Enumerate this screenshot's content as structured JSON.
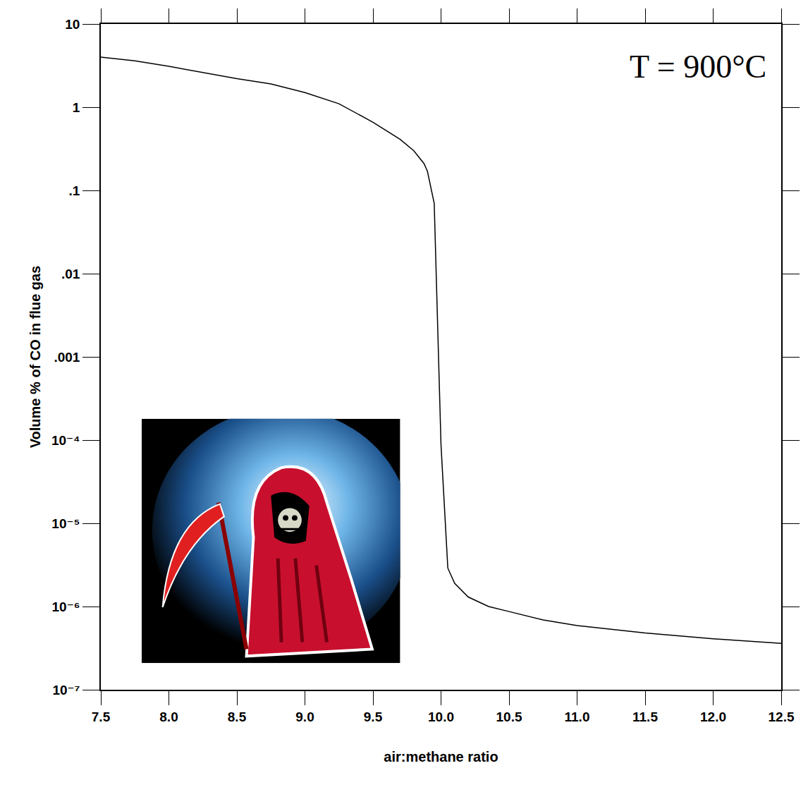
{
  "chart_data": {
    "type": "line",
    "x_label": "air:methane ratio",
    "y_label": "Volume % of CO in flue gas",
    "annotations": [
      "T = 900°C"
    ],
    "x": [
      7.5,
      7.75,
      8.0,
      8.25,
      8.5,
      8.75,
      9.0,
      9.25,
      9.5,
      9.7,
      9.8,
      9.875,
      9.9,
      9.95,
      9.975,
      10.0,
      10.05,
      10.1,
      10.2,
      10.35,
      10.5,
      10.75,
      11.0,
      11.5,
      12.0,
      12.5
    ],
    "values": [
      4.0,
      3.6,
      3.1,
      2.6,
      2.2,
      1.9,
      1.5,
      1.1,
      0.66,
      0.41,
      0.3,
      0.21,
      0.17,
      0.07,
      0.0029,
      8.7e-05,
      2.9e-06,
      1.9e-06,
      1.3e-06,
      1e-06,
      8.7e-07,
      6.9e-07,
      5.9e-07,
      4.8e-07,
      4.1e-07,
      3.6e-07
    ],
    "color": "#000000",
    "xlim": [
      7.5,
      12.5
    ],
    "ylim": [
      1e-07,
      10
    ],
    "xticks": [
      7.5,
      {
        "value": 8,
        "label": "8.0"
      },
      8.5,
      {
        "value": 9,
        "label": "9.0"
      },
      9.5,
      {
        "value": 10,
        "label": "10.0"
      },
      10.5,
      {
        "value": 11,
        "label": "11.0"
      },
      11.5,
      {
        "value": 12,
        "label": "12.0"
      },
      12.5
    ],
    "yticks": [
      10,
      1,
      {
        "value": 0.1,
        "label": ".1"
      },
      {
        "value": 0.01,
        "label": ".01"
      },
      {
        "value": 0.001,
        "label": ".001"
      },
      {
        "value": 0.0001,
        "label": "10⁻⁴"
      },
      {
        "value": 1e-05,
        "label": "10⁻⁵"
      },
      {
        "value": 1e-06,
        "label": "10⁻⁶"
      },
      {
        "value": 1e-07,
        "label": "10⁻⁷"
      }
    ],
    "log": "y",
    "grid": false
  }
}
